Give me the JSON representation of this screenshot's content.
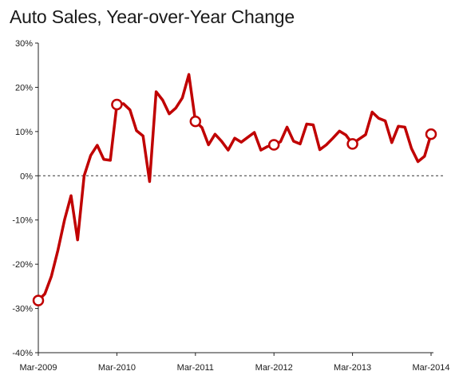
{
  "chart_data": {
    "type": "line",
    "title": "Auto Sales, Year-over-Year Change",
    "xlabel": "",
    "ylabel": "",
    "ylim": [
      -40,
      30
    ],
    "y_ticks": [
      -40,
      -30,
      -20,
      -10,
      0,
      10,
      20,
      30
    ],
    "y_tick_format": "percent",
    "x_ticks": [
      {
        "month": 0,
        "label": "Mar-2009"
      },
      {
        "month": 12,
        "label": "Mar-2010"
      },
      {
        "month": 24,
        "label": "Mar-2011"
      },
      {
        "month": 36,
        "label": "Mar-2012"
      },
      {
        "month": 48,
        "label": "Mar-2013"
      },
      {
        "month": 60,
        "label": "Mar-2014"
      }
    ],
    "x_start": "Mar-2009",
    "x_end": "Mar-2014",
    "grid": false,
    "zero_line": "dashed",
    "line_color": "#c00000",
    "series": [
      {
        "values": [
          -28.2,
          -26.7,
          -22.7,
          -16.8,
          -10.0,
          -4.5,
          -14.5,
          0.0,
          4.6,
          6.9,
          3.7,
          3.5,
          16.1,
          16.3,
          14.9,
          10.2,
          9.0,
          -1.3,
          19.0,
          17.1,
          14.0,
          15.3,
          17.6,
          22.9,
          12.3,
          10.9,
          7.0,
          9.4,
          7.8,
          5.8,
          8.5,
          7.6,
          8.7,
          9.8,
          5.8,
          6.6,
          7.0,
          7.7,
          11.0,
          7.8,
          7.2,
          11.7,
          11.5,
          5.9,
          7.0,
          8.5,
          10.1,
          9.2,
          7.2,
          8.3,
          9.3,
          14.4,
          13.0,
          12.4,
          7.5,
          11.2,
          11.0,
          6.2,
          3.2,
          4.4,
          9.4
        ],
        "markers_at_months": [
          0,
          12,
          24,
          36,
          48,
          60
        ]
      }
    ]
  }
}
